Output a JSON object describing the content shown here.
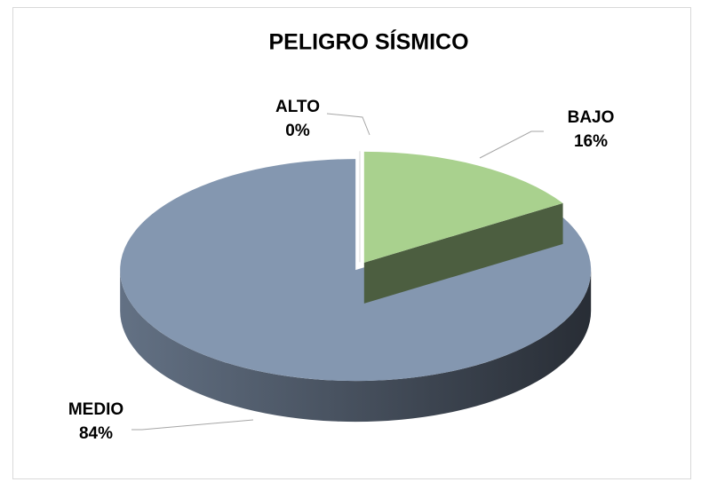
{
  "chart_data": {
    "type": "pie",
    "title": "PELIGRO SÍSMICO",
    "categories": [
      "ALTO",
      "BAJO",
      "MEDIO"
    ],
    "values": [
      0,
      16,
      84
    ],
    "value_labels": [
      "0%",
      "16%",
      "84%"
    ],
    "colors": [
      "#ffffff",
      "#a9d18e",
      "#8497b0"
    ]
  }
}
